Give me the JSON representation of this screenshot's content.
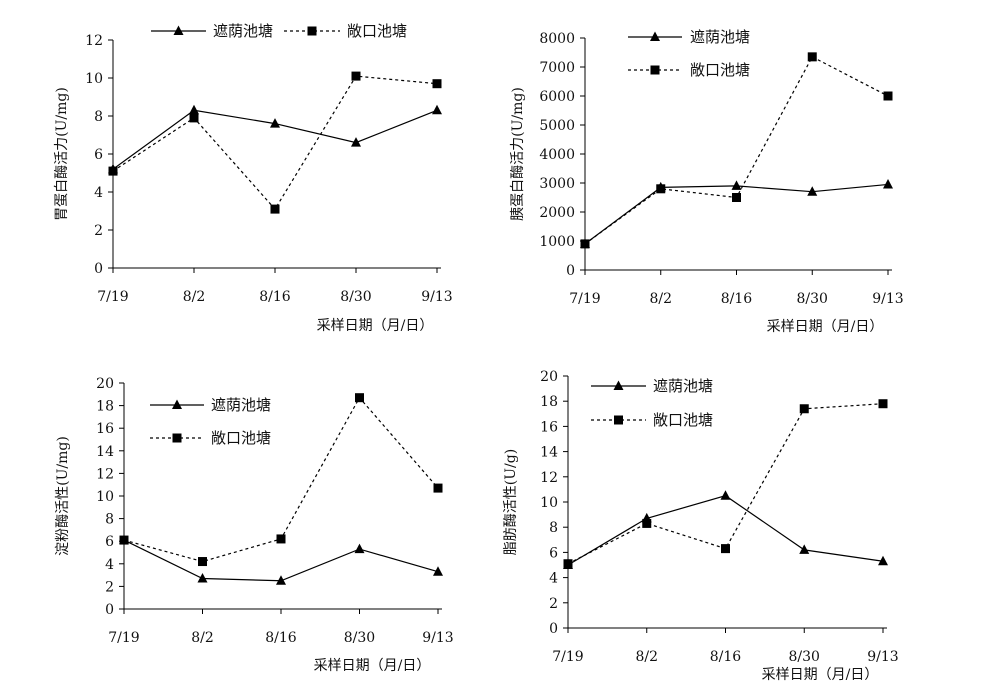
{
  "chart_data": [
    {
      "type": "line",
      "ylabel": "胃蛋白酶活力(U/mg)",
      "xlabel": "采样日期（月/日）",
      "categories": [
        "7/19",
        "8/2",
        "8/16",
        "8/30",
        "9/13"
      ],
      "ylim": [
        0,
        12
      ],
      "yticks": [
        0,
        2,
        4,
        6,
        8,
        10,
        12
      ],
      "legend_position": "top-center-horizontal",
      "series": [
        {
          "name": "遮荫池塘",
          "marker": "triangle",
          "line": "solid",
          "values": [
            5.2,
            8.3,
            7.6,
            6.6,
            8.3
          ]
        },
        {
          "name": "敞口池塘",
          "marker": "square",
          "line": "dotted",
          "values": [
            5.1,
            7.9,
            3.1,
            10.1,
            9.7
          ]
        }
      ]
    },
    {
      "type": "line",
      "ylabel": "胰蛋白酶活力(U/mg)",
      "xlabel": "采样日期（月/日）",
      "categories": [
        "7/19",
        "8/2",
        "8/16",
        "8/30",
        "9/13"
      ],
      "ylim": [
        0,
        8000
      ],
      "yticks": [
        0,
        1000,
        2000,
        3000,
        4000,
        5000,
        6000,
        7000,
        8000
      ],
      "legend_position": "top-left-stacked",
      "series": [
        {
          "name": "遮荫池塘",
          "marker": "triangle",
          "line": "solid",
          "values": [
            900,
            2850,
            2900,
            2700,
            2950
          ]
        },
        {
          "name": "敞口池塘",
          "marker": "square",
          "line": "dotted",
          "values": [
            900,
            2800,
            2500,
            7350,
            6000
          ]
        }
      ]
    },
    {
      "type": "line",
      "ylabel": "淀粉酶活性(U/mg)",
      "xlabel": "采样日期（月/日）",
      "categories": [
        "7/19",
        "8/2",
        "8/16",
        "8/30",
        "9/13"
      ],
      "ylim": [
        0,
        20
      ],
      "yticks": [
        0,
        2,
        4,
        6,
        8,
        10,
        12,
        14,
        16,
        18,
        20
      ],
      "legend_position": "top-left-stacked",
      "series": [
        {
          "name": "遮荫池塘",
          "marker": "triangle",
          "line": "solid",
          "values": [
            6.1,
            2.7,
            2.5,
            5.3,
            3.3
          ]
        },
        {
          "name": "敞口池塘",
          "marker": "square",
          "line": "dotted",
          "values": [
            6.1,
            4.2,
            6.2,
            18.7,
            10.7
          ]
        }
      ]
    },
    {
      "type": "line",
      "ylabel": "脂肪酶活性(U/g)",
      "xlabel": "采样日期（月/日）",
      "categories": [
        "7/19",
        "8/2",
        "8/16",
        "8/30",
        "9/13"
      ],
      "ylim": [
        0,
        20
      ],
      "yticks": [
        0,
        2,
        4,
        6,
        8,
        10,
        12,
        14,
        16,
        18,
        20
      ],
      "legend_position": "top-left-stacked",
      "series": [
        {
          "name": "遮荫池塘",
          "marker": "triangle",
          "line": "solid",
          "values": [
            5.0,
            8.7,
            10.5,
            6.2,
            5.3
          ]
        },
        {
          "name": "敞口池塘",
          "marker": "square",
          "line": "dotted",
          "values": [
            5.1,
            8.3,
            6.3,
            17.4,
            17.8
          ]
        }
      ]
    }
  ]
}
